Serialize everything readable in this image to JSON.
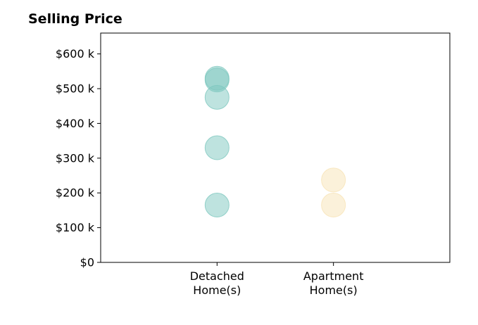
{
  "chart_data": {
    "type": "scatter",
    "title": "Selling Price",
    "xlabel": "",
    "ylabel": "",
    "categories": [
      [
        "Detached",
        "Home(s)"
      ],
      [
        "Apartment",
        "Home(s)"
      ]
    ],
    "x_range": [
      -1,
      2
    ],
    "ylim": [
      0,
      660000
    ],
    "yticks": [
      {
        "value": 0,
        "label": "$0"
      },
      {
        "value": 100000,
        "label": "$100 k"
      },
      {
        "value": 200000,
        "label": "$200 k"
      },
      {
        "value": 300000,
        "label": "$300 k"
      },
      {
        "value": 400000,
        "label": "$400 k"
      },
      {
        "value": 500000,
        "label": "$500 k"
      },
      {
        "value": 600000,
        "label": "$600 k"
      }
    ],
    "grid": false,
    "series": [
      {
        "category_index": 0,
        "color": "#7ec8bf",
        "values": [
          165000,
          330000,
          475000,
          525000,
          530000
        ]
      },
      {
        "category_index": 1,
        "color": "#f7e3b5",
        "values": [
          165000,
          237000
        ]
      }
    ]
  }
}
